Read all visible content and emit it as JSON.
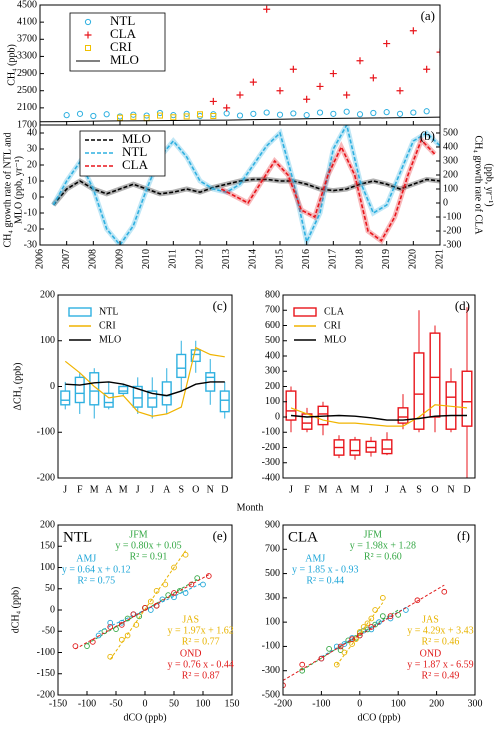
{
  "chart_data": [
    {
      "type": "scatter_line",
      "panel_label": "(a)",
      "y_label": "CH₄ (ppb)",
      "xlim": [
        2006,
        2021
      ],
      "ylim": [
        1700,
        4500
      ],
      "yticks": [
        1700,
        2100,
        2500,
        2900,
        3300,
        3700,
        4100,
        4500
      ],
      "series": [
        {
          "name": "NTL",
          "marker": "circle",
          "color": "#2fb0e0",
          "x": [
            2007,
            2007.5,
            2008,
            2008.5,
            2009,
            2009.5,
            2010,
            2010.5,
            2011,
            2011.5,
            2012,
            2012.5,
            2013,
            2013.5,
            2014,
            2014.5,
            2015,
            2015.5,
            2016,
            2016.5,
            2017,
            2017.5,
            2018,
            2018.5,
            2019,
            2019.5,
            2020,
            2020.5
          ],
          "values": [
            1930,
            1960,
            1910,
            1950,
            1900,
            1940,
            1920,
            1980,
            1930,
            1960,
            1910,
            1950,
            1970,
            1920,
            1960,
            1990,
            1940,
            1970,
            1930,
            1990,
            1960,
            2010,
            1950,
            1980,
            2000,
            1960,
            1990,
            2020
          ]
        },
        {
          "name": "CLA",
          "marker": "plus",
          "color": "#e8151b",
          "x": [
            2012.5,
            2013,
            2013.5,
            2014,
            2014.5,
            2015,
            2015.5,
            2016,
            2016.5,
            2017,
            2017.5,
            2018,
            2018.5,
            2019,
            2019.5,
            2020,
            2020.5,
            2021
          ],
          "values": [
            2250,
            2100,
            2400,
            2700,
            4400,
            2500,
            3000,
            2300,
            2600,
            2900,
            2400,
            3200,
            2800,
            3600,
            2500,
            3900,
            3000,
            3400
          ]
        },
        {
          "name": "CRI",
          "marker": "square",
          "color": "#f0c000",
          "x": [
            2009,
            2009.5,
            2010,
            2010.5,
            2011,
            2011.5,
            2012,
            2012.5
          ],
          "values": [
            1870,
            1890,
            1860,
            1920,
            1880,
            1900,
            1950,
            1910
          ]
        },
        {
          "name": "MLO",
          "marker": "line",
          "color": "#000000",
          "x": [
            2006,
            2007,
            2008,
            2009,
            2010,
            2011,
            2012,
            2013,
            2014,
            2015,
            2016,
            2017,
            2018,
            2019,
            2020,
            2021
          ],
          "values": [
            1775,
            1780,
            1790,
            1795,
            1800,
            1805,
            1810,
            1815,
            1825,
            1835,
            1845,
            1855,
            1860,
            1865,
            1875,
            1885
          ]
        }
      ]
    },
    {
      "type": "line",
      "panel_label": "(b)",
      "y_label": [
        "CH₄ growth rate of NTL and",
        "MLO (ppb, yr⁻¹)"
      ],
      "y2_label": [
        "CH₄ growth rate of CLA",
        "(ppb, yr⁻¹)"
      ],
      "xlim": [
        2006,
        2021
      ],
      "xticks": [
        2006,
        2007,
        2008,
        2009,
        2010,
        2011,
        2012,
        2013,
        2014,
        2015,
        2016,
        2017,
        2018,
        2019,
        2020,
        2021
      ],
      "ylim": [
        -30,
        45
      ],
      "yticks": [
        -30,
        -20,
        -10,
        0,
        10,
        20,
        30,
        40
      ],
      "y2lim": [
        -300,
        557
      ],
      "y2ticks": [
        -300,
        -200,
        -100,
        0,
        100,
        200,
        300,
        400,
        500
      ],
      "line_style": "dashed",
      "series": [
        {
          "name": "MLO",
          "color": "#000000",
          "x": [
            2006.5,
            2007,
            2007.5,
            2008,
            2008.5,
            2009,
            2009.5,
            2010,
            2010.5,
            2011,
            2011.5,
            2012,
            2012.5,
            2013,
            2013.5,
            2014,
            2014.5,
            2015,
            2015.5,
            2016,
            2016.5,
            2017,
            2017.5,
            2018,
            2018.5,
            2019,
            2019.5,
            2020,
            2020.5,
            2021
          ],
          "values": [
            -5,
            5,
            10,
            5,
            2,
            5,
            8,
            5,
            2,
            3,
            5,
            3,
            6,
            8,
            10,
            11,
            11,
            10,
            10,
            8,
            5,
            4,
            5,
            8,
            10,
            8,
            5,
            8,
            11,
            10
          ]
        },
        {
          "name": "NTL",
          "color": "#2fb0e0",
          "x": [
            2006.5,
            2007,
            2007.5,
            2008,
            2008.5,
            2009,
            2009.5,
            2010,
            2010.5,
            2011,
            2011.5,
            2012,
            2012.5,
            2013,
            2013.5,
            2014,
            2014.5,
            2015,
            2015.5,
            2016,
            2016.5,
            2017,
            2017.5,
            2018,
            2018.5,
            2019,
            2019.5,
            2020,
            2020.5,
            2021
          ],
          "values": [
            -5,
            10,
            22,
            5,
            -20,
            -30,
            -18,
            5,
            25,
            35,
            25,
            10,
            5,
            3,
            8,
            20,
            32,
            40,
            10,
            -28,
            -10,
            30,
            45,
            10,
            -10,
            -5,
            15,
            35,
            40,
            32
          ]
        },
        {
          "name": "CLA",
          "color": "#e8151b",
          "axis": "y2",
          "x": [
            2012.8,
            2013.3,
            2013.8,
            2014.3,
            2014.8,
            2015.3,
            2015.8,
            2016.3,
            2016.8,
            2017.3,
            2017.8,
            2018.3,
            2018.8,
            2019.3,
            2019.8,
            2020.3,
            2020.8
          ],
          "values": [
            100,
            50,
            0,
            150,
            300,
            200,
            -50,
            -100,
            200,
            400,
            200,
            -200,
            -270,
            -100,
            200,
            450,
            350
          ]
        }
      ]
    },
    {
      "type": "box",
      "panel_label": "(c)",
      "y_label": "ΔCH₄ (ppb)",
      "x_label": "Month",
      "categories": [
        "J",
        "F",
        "M",
        "A",
        "M",
        "J",
        "J",
        "A",
        "S",
        "O",
        "N",
        "D"
      ],
      "ylim": [
        -200,
        200
      ],
      "yticks": [
        -200,
        -100,
        0,
        100,
        200
      ],
      "series": [
        {
          "name": "NTL",
          "type": "box",
          "color": "#2fb0e0",
          "whislo": [
            -50,
            -60,
            -70,
            -50,
            -20,
            -60,
            -70,
            -60,
            -10,
            30,
            -40,
            -70
          ],
          "q1": [
            -40,
            -35,
            -40,
            -45,
            -15,
            -45,
            -45,
            -40,
            20,
            55,
            -10,
            -55
          ],
          "median": [
            -30,
            -15,
            -10,
            -35,
            -10,
            -25,
            -25,
            -20,
            40,
            70,
            20,
            -30
          ],
          "q3": [
            -10,
            20,
            30,
            -15,
            0,
            0,
            -10,
            10,
            70,
            80,
            30,
            -10
          ],
          "whishi": [
            10,
            30,
            40,
            10,
            5,
            20,
            20,
            40,
            100,
            100,
            60,
            10
          ]
        },
        {
          "name": "CRI",
          "type": "line",
          "color": "#f0b400",
          "values": [
            55,
            30,
            0,
            -25,
            -20,
            -55,
            -65,
            -60,
            -45,
            85,
            70,
            65
          ]
        },
        {
          "name": "MLO",
          "type": "line",
          "color": "#000000",
          "values": [
            5,
            3,
            8,
            10,
            5,
            -5,
            -15,
            -20,
            -10,
            5,
            10,
            10
          ]
        }
      ]
    },
    {
      "type": "box",
      "panel_label": "(d)",
      "categories": [
        "J",
        "F",
        "M",
        "A",
        "M",
        "J",
        "J",
        "A",
        "S",
        "O",
        "N",
        "D"
      ],
      "ylim": [
        -400,
        800
      ],
      "yticks": [
        -400,
        -300,
        -200,
        -100,
        0,
        100,
        200,
        300,
        400,
        500,
        600,
        700,
        800
      ],
      "series": [
        {
          "name": "CLA",
          "type": "box",
          "color": "#e8151b",
          "whislo": [
            -100,
            -100,
            -120,
            -270,
            -280,
            -260,
            -250,
            -80,
            -100,
            -100,
            -100,
            -450
          ],
          "q1": [
            -20,
            -80,
            -50,
            -250,
            -250,
            -230,
            -240,
            -40,
            -80,
            0,
            -80,
            -60
          ],
          "median": [
            40,
            -40,
            20,
            -200,
            -220,
            -200,
            -210,
            0,
            150,
            260,
            130,
            100
          ],
          "q3": [
            170,
            20,
            70,
            -150,
            -150,
            -160,
            -150,
            60,
            420,
            550,
            230,
            300
          ],
          "whishi": [
            200,
            60,
            100,
            -120,
            -130,
            -130,
            -100,
            150,
            700,
            600,
            320,
            720
          ]
        },
        {
          "name": "CRI",
          "type": "line",
          "color": "#f0b400",
          "values": [
            60,
            20,
            -20,
            -40,
            -40,
            -50,
            -60,
            -60,
            0,
            80,
            70,
            60
          ]
        },
        {
          "name": "MLO",
          "type": "line",
          "color": "#000000",
          "values": [
            10,
            0,
            5,
            10,
            5,
            -5,
            -20,
            -20,
            -10,
            5,
            10,
            10
          ]
        }
      ]
    },
    {
      "type": "scatter",
      "panel_label": "(e)",
      "title": "NTL",
      "x_label": "dCO (ppb)",
      "y_label": "dCH₄ (ppb)",
      "xlim": [
        -150,
        150
      ],
      "xticks": [
        -150,
        -100,
        -50,
        0,
        50,
        100,
        150
      ],
      "ylim": [
        -200,
        200
      ],
      "yticks": [
        -200,
        -150,
        -100,
        -50,
        0,
        50,
        100,
        150,
        200
      ],
      "series": [
        {
          "name": "JFM",
          "color": "#35a845",
          "x": [
            -100,
            -70,
            -50,
            -30,
            -10,
            0,
            20,
            40,
            60,
            90
          ],
          "values": [
            -85,
            -50,
            -45,
            -20,
            -15,
            5,
            10,
            35,
            45,
            75
          ],
          "fit": {
            "slope": 0.8,
            "intercept": 0.05
          },
          "fit_label": "y = 0.80x + 0.05",
          "r2_label": "R² = 0.91"
        },
        {
          "name": "AMJ",
          "color": "#1fa6d8",
          "x": [
            -80,
            -60,
            -40,
            -20,
            0,
            10,
            30,
            50,
            70,
            100
          ],
          "values": [
            -60,
            -30,
            -30,
            -10,
            5,
            0,
            25,
            30,
            40,
            60
          ],
          "fit": {
            "slope": 0.64,
            "intercept": 0.12
          },
          "fit_label": "y = 0.64 x + 0.12",
          "r2_label": "R² = 0.75"
        },
        {
          "name": "JAS",
          "color": "#e8b400",
          "x": [
            -60,
            -40,
            -30,
            -15,
            0,
            10,
            20,
            35,
            50,
            70
          ],
          "values": [
            -110,
            -70,
            -60,
            -35,
            5,
            20,
            45,
            60,
            100,
            130
          ],
          "fit": {
            "slope": 1.97,
            "intercept": 1.62
          },
          "fit_label": "y = 1.97x + 1.62",
          "r2_label": "R² = 0.77"
        },
        {
          "name": "OND",
          "color": "#e01b1b",
          "x": [
            -120,
            -90,
            -60,
            -40,
            -20,
            0,
            20,
            50,
            80,
            110
          ],
          "values": [
            -85,
            -75,
            -40,
            -35,
            -10,
            5,
            10,
            40,
            60,
            80
          ],
          "fit": {
            "slope": 0.76,
            "intercept": -0.44
          },
          "fit_label": "y = 0.76 x - 0.44",
          "r2_label": "R² = 0.87"
        }
      ]
    },
    {
      "type": "scatter",
      "panel_label": "(f)",
      "title": "CLA",
      "x_label": "dCO (ppb)",
      "xlim": [
        -200,
        300
      ],
      "xticks": [
        -200,
        -100,
        0,
        100,
        200,
        300
      ],
      "ylim": [
        -500,
        900
      ],
      "yticks": [
        -500,
        -300,
        -100,
        100,
        300,
        500,
        700,
        900
      ],
      "series": [
        {
          "name": "JFM",
          "color": "#35a845",
          "x": [
            -150,
            -80,
            -50,
            -30,
            -10,
            0,
            20,
            40,
            60,
            100
          ],
          "values": [
            -300,
            -120,
            -130,
            -50,
            -30,
            10,
            40,
            80,
            150,
            160
          ],
          "fit": {
            "slope": 1.98,
            "intercept": 1.28
          },
          "fit_label": "y = 1.98x + 1.28",
          "r2_label": "R² = 0.60"
        },
        {
          "name": "AMJ",
          "color": "#1fa6d8",
          "x": [
            -100,
            -60,
            -40,
            -20,
            0,
            10,
            30,
            50,
            80,
            120
          ],
          "values": [
            -200,
            -100,
            -80,
            -30,
            -10,
            30,
            40,
            100,
            130,
            200
          ],
          "fit": {
            "slope": 1.85,
            "intercept": -0.93
          },
          "fit_label": "y = 1.85 x - 0.93",
          "r2_label": "R² = 0.44"
        },
        {
          "name": "JAS",
          "color": "#e8b400",
          "x": [
            -60,
            -40,
            -20,
            -10,
            0,
            10,
            20,
            30,
            40,
            60
          ],
          "values": [
            -250,
            -150,
            -80,
            -40,
            20,
            60,
            90,
            130,
            200,
            300
          ],
          "fit": {
            "slope": 4.29,
            "intercept": 3.43
          },
          "fit_label": "y = 4.29x + 3.43",
          "r2_label": "R² = 0.46"
        },
        {
          "name": "OND",
          "color": "#e01b1b",
          "x": [
            -200,
            -150,
            -100,
            -50,
            -20,
            0,
            30,
            80,
            150,
            220
          ],
          "values": [
            -420,
            -250,
            -200,
            -100,
            -40,
            -10,
            60,
            150,
            280,
            350
          ],
          "fit": {
            "slope": 1.87,
            "intercept": -6.59
          },
          "fit_label": "y = 1.87 x - 6.59",
          "r2_label": "R² = 0.49"
        }
      ]
    }
  ]
}
